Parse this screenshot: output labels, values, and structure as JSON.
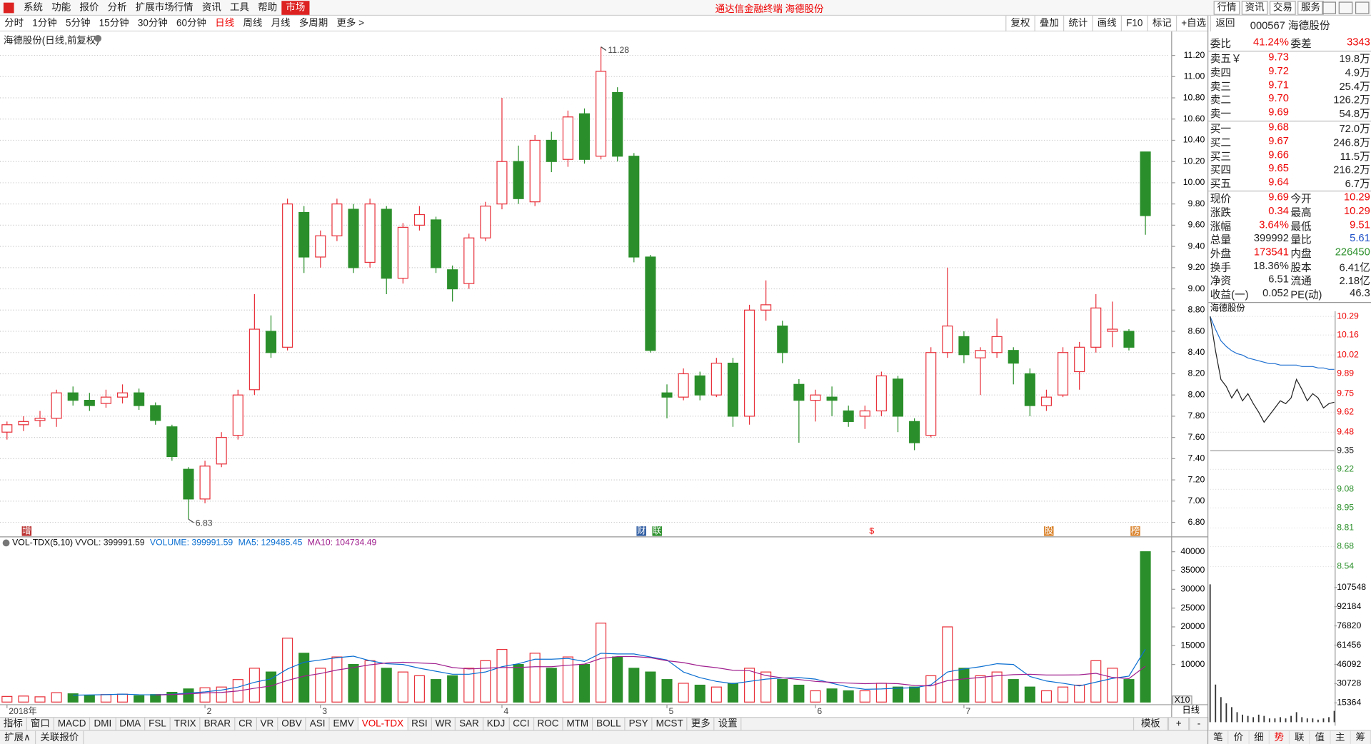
{
  "menu": {
    "items": [
      "系统",
      "功能",
      "报价",
      "分析",
      "扩展市场行情",
      "资讯",
      "工具",
      "帮助"
    ],
    "market": "市场",
    "title": "通达信金融终端  海德股份",
    "right": [
      "行情",
      "资讯",
      "交易",
      "服务"
    ]
  },
  "toolbar": {
    "periods": [
      "分时",
      "1分钟",
      "5分钟",
      "15分钟",
      "30分钟",
      "60分钟",
      "日线",
      "周线",
      "月线",
      "多周期",
      "更多 >"
    ],
    "active": "日线",
    "tools": [
      "复权",
      "叠加",
      "统计",
      "画线",
      "F10",
      "标记",
      "+自选",
      "返回"
    ]
  },
  "chart_data": {
    "type": "candlestick",
    "title": "海德股份(日线,前复权)",
    "categories": [
      "2018年",
      null,
      null,
      null,
      null,
      null,
      null,
      null,
      null,
      null,
      null,
      null,
      "2",
      null,
      null,
      null,
      null,
      null,
      null,
      "3",
      null,
      null,
      null,
      null,
      null,
      null,
      null,
      null,
      null,
      null,
      "4",
      null,
      null,
      null,
      null,
      null,
      null,
      null,
      null,
      null,
      "5",
      null,
      null,
      null,
      null,
      null,
      null,
      null,
      null,
      "6",
      null,
      null,
      null,
      null,
      null,
      null,
      null,
      null,
      "7",
      null,
      null,
      null,
      null,
      null,
      null,
      null,
      null,
      null,
      null,
      null
    ],
    "ohlc": [
      [
        7.65,
        7.75,
        7.58,
        7.72
      ],
      [
        7.72,
        7.8,
        7.66,
        7.75
      ],
      [
        7.76,
        7.85,
        7.7,
        7.78
      ],
      [
        7.78,
        8.05,
        7.7,
        8.02
      ],
      [
        8.02,
        8.08,
        7.9,
        7.95
      ],
      [
        7.95,
        8.02,
        7.85,
        7.9
      ],
      [
        7.92,
        8.05,
        7.88,
        7.98
      ],
      [
        7.98,
        8.1,
        7.92,
        8.02
      ],
      [
        8.02,
        8.06,
        7.86,
        7.9
      ],
      [
        7.9,
        7.93,
        7.72,
        7.76
      ],
      [
        7.7,
        7.72,
        7.38,
        7.42
      ],
      [
        7.3,
        7.32,
        6.83,
        7.02
      ],
      [
        7.02,
        7.38,
        6.98,
        7.33
      ],
      [
        7.35,
        7.65,
        7.32,
        7.6
      ],
      [
        7.62,
        8.05,
        7.58,
        8.0
      ],
      [
        8.05,
        8.95,
        8.0,
        8.62
      ],
      [
        8.6,
        8.75,
        8.35,
        8.4
      ],
      [
        8.45,
        9.85,
        8.42,
        9.8
      ],
      [
        9.72,
        9.78,
        9.15,
        9.3
      ],
      [
        9.3,
        9.55,
        9.2,
        9.5
      ],
      [
        9.5,
        9.85,
        9.45,
        9.8
      ],
      [
        9.75,
        9.8,
        9.15,
        9.2
      ],
      [
        9.25,
        9.85,
        9.2,
        9.8
      ],
      [
        9.75,
        9.78,
        8.95,
        9.1
      ],
      [
        9.1,
        9.62,
        9.05,
        9.58
      ],
      [
        9.6,
        9.78,
        9.55,
        9.7
      ],
      [
        9.65,
        9.68,
        9.15,
        9.2
      ],
      [
        9.18,
        9.22,
        8.88,
        9.0
      ],
      [
        9.05,
        9.52,
        9.0,
        9.48
      ],
      [
        9.48,
        9.82,
        9.45,
        9.78
      ],
      [
        9.8,
        10.8,
        9.75,
        10.2
      ],
      [
        10.2,
        10.35,
        9.8,
        9.85
      ],
      [
        9.82,
        10.45,
        9.78,
        10.4
      ],
      [
        10.4,
        10.48,
        10.1,
        10.2
      ],
      [
        10.22,
        10.68,
        10.15,
        10.62
      ],
      [
        10.65,
        10.7,
        10.18,
        10.22
      ],
      [
        10.25,
        11.28,
        10.22,
        11.05
      ],
      [
        10.85,
        10.9,
        10.2,
        10.25
      ],
      [
        10.25,
        10.28,
        9.25,
        9.3
      ],
      [
        9.3,
        9.32,
        8.4,
        8.42
      ],
      [
        8.02,
        8.1,
        7.78,
        7.98
      ],
      [
        7.98,
        8.25,
        7.95,
        8.2
      ],
      [
        8.18,
        8.22,
        7.95,
        8.0
      ],
      [
        8.0,
        8.35,
        7.98,
        8.3
      ],
      [
        8.3,
        8.35,
        7.7,
        7.8
      ],
      [
        7.8,
        8.85,
        7.72,
        8.8
      ],
      [
        8.8,
        9.08,
        8.7,
        8.85
      ],
      [
        8.65,
        8.7,
        8.3,
        8.4
      ],
      [
        8.1,
        8.15,
        7.55,
        7.95
      ],
      [
        7.95,
        8.05,
        7.75,
        8.0
      ],
      [
        7.98,
        8.08,
        7.8,
        7.95
      ],
      [
        7.85,
        7.9,
        7.7,
        7.75
      ],
      [
        7.8,
        7.9,
        7.68,
        7.85
      ],
      [
        7.85,
        8.22,
        7.8,
        8.18
      ],
      [
        8.15,
        8.18,
        7.65,
        7.8
      ],
      [
        7.75,
        7.78,
        7.48,
        7.55
      ],
      [
        7.62,
        8.45,
        7.6,
        8.4
      ],
      [
        8.4,
        9.2,
        8.35,
        8.65
      ],
      [
        8.55,
        8.6,
        8.3,
        8.38
      ],
      [
        8.35,
        8.45,
        8.0,
        8.42
      ],
      [
        8.4,
        8.72,
        8.35,
        8.55
      ],
      [
        8.42,
        8.45,
        8.1,
        8.3
      ],
      [
        8.2,
        8.25,
        7.8,
        7.9
      ],
      [
        7.9,
        8.05,
        7.85,
        7.98
      ],
      [
        8.0,
        8.45,
        7.98,
        8.4
      ],
      [
        8.22,
        8.5,
        8.05,
        8.45
      ],
      [
        8.45,
        8.95,
        8.4,
        8.82
      ],
      [
        8.6,
        8.88,
        8.45,
        8.62
      ],
      [
        8.6,
        8.62,
        8.42,
        8.45
      ],
      [
        10.29,
        10.29,
        9.51,
        9.69
      ]
    ],
    "ylim": [
      6.68,
      11.31
    ],
    "yticks": [
      {
        "value": 11.2,
        "label": "11.20"
      },
      {
        "value": 11,
        "label": "11.00"
      },
      {
        "value": 10.8,
        "label": "10.80"
      },
      {
        "value": 10.6,
        "label": "10.60"
      },
      {
        "value": 10.4,
        "label": "10.40"
      },
      {
        "value": 10.2,
        "label": "10.20"
      },
      {
        "value": 10,
        "label": "10.00"
      },
      {
        "value": 9.8,
        "label": "9.80"
      },
      {
        "value": 9.6,
        "label": "9.60"
      },
      {
        "value": 9.4,
        "label": "9.40"
      },
      {
        "value": 9.2,
        "label": "9.20"
      },
      {
        "value": 9,
        "label": "9.00"
      },
      {
        "value": 8.8,
        "label": "8.80"
      },
      {
        "value": 8.6,
        "label": "8.60"
      },
      {
        "value": 8.4,
        "label": "8.40"
      },
      {
        "value": 8.2,
        "label": "8.20"
      },
      {
        "value": 8,
        "label": "8.00"
      },
      {
        "value": 7.8,
        "label": "7.80"
      },
      {
        "value": 7.6,
        "label": "7.60"
      },
      {
        "value": 7.4,
        "label": "7.40"
      },
      {
        "value": 7.2,
        "label": "7.20"
      },
      {
        "value": 7,
        "label": "7.00"
      },
      {
        "value": 6.8,
        "label": "6.80"
      }
    ],
    "grid": true,
    "up_color": "#e8323c",
    "down_color": "#2a8f2a",
    "events": [
      "增",
      "财",
      "联",
      "$",
      "股",
      "榜"
    ],
    "volume": {
      "title": "VOL-TDX(5,10)",
      "legend": [
        {
          "text": "VVOL: 399991.59",
          "color": "#222"
        },
        {
          "text": "VOLUME: 399991.59",
          "color": "#0a6ed1"
        },
        {
          "text": "MA5: 129485.45",
          "color": "#0a6ed1"
        },
        {
          "text": "MA10: 104734.49",
          "color": "#a0208f"
        }
      ],
      "values": [
        1500,
        1600,
        1400,
        2500,
        2200,
        1800,
        2000,
        2100,
        1700,
        2000,
        2600,
        3500,
        3800,
        4000,
        6000,
        9000,
        8000,
        17000,
        13000,
        9000,
        12000,
        10000,
        11000,
        9000,
        8000,
        7000,
        6000,
        7000,
        9000,
        11000,
        14000,
        10000,
        13000,
        9000,
        12000,
        10000,
        21000,
        12000,
        9000,
        8000,
        6000,
        5000,
        4500,
        4000,
        5000,
        9000,
        8000,
        6000,
        4500,
        3000,
        3500,
        3000,
        3000,
        5000,
        4000,
        4000,
        7000,
        20000,
        9000,
        7000,
        8000,
        6000,
        4000,
        3000,
        4000,
        4500,
        11000,
        9000,
        6000,
        39999
      ],
      "ylim": [
        0,
        42100
      ],
      "yticks": [
        40000,
        35000,
        30000,
        25000,
        20000,
        15000,
        10000
      ],
      "scale_label": "X10",
      "ma_periods": [
        5,
        10
      ],
      "ma_colors": [
        "#0a6ed1",
        "#a0208f"
      ]
    },
    "period_label": "日线"
  },
  "indicators": {
    "items": [
      "指标",
      "窗口",
      "MACD",
      "DMI",
      "DMA",
      "FSL",
      "TRIX",
      "BRAR",
      "CR",
      "VR",
      "OBV",
      "ASI",
      "EMV",
      "VOL-TDX",
      "RSI",
      "WR",
      "SAR",
      "KDJ",
      "CCI",
      "ROC",
      "MTM",
      "BOLL",
      "PSY",
      "MCST",
      "更多",
      "设置"
    ],
    "active": "VOL-TDX",
    "right": [
      "模板",
      "+",
      "-"
    ]
  },
  "footer": [
    "扩展∧",
    "关联报价"
  ],
  "quote": {
    "code": "000567",
    "name": "海德股份",
    "summary": [
      {
        "label": "委比",
        "value": "41.24%",
        "color": "#e00"
      },
      {
        "label": "委差",
        "value": "3343",
        "color": "#e00"
      }
    ],
    "asks": [
      {
        "label": "卖五￥",
        "price": "9.73",
        "vol": "19.8万"
      },
      {
        "label": "卖四",
        "price": "9.72",
        "vol": "4.9万"
      },
      {
        "label": "卖三",
        "price": "9.71",
        "vol": "25.4万"
      },
      {
        "label": "卖二",
        "price": "9.70",
        "vol": "126.2万"
      },
      {
        "label": "卖一",
        "price": "9.69",
        "vol": "54.8万"
      }
    ],
    "bids": [
      {
        "label": "买一",
        "price": "9.68",
        "vol": "72.0万"
      },
      {
        "label": "买二",
        "price": "9.67",
        "vol": "246.8万"
      },
      {
        "label": "买三",
        "price": "9.66",
        "vol": "11.5万"
      },
      {
        "label": "买四",
        "price": "9.65",
        "vol": "216.2万"
      },
      {
        "label": "买五",
        "price": "9.64",
        "vol": "6.7万"
      }
    ],
    "price_color": "#e00",
    "stats": [
      [
        {
          "label": "现价",
          "value": "9.69",
          "color": "#e00"
        },
        {
          "label": "今开",
          "value": "10.29",
          "color": "#e00"
        }
      ],
      [
        {
          "label": "涨跌",
          "value": "0.34",
          "color": "#e00"
        },
        {
          "label": "最高",
          "value": "10.29",
          "color": "#e00"
        }
      ],
      [
        {
          "label": "涨幅",
          "value": "3.64%",
          "color": "#e00"
        },
        {
          "label": "最低",
          "value": "9.51",
          "color": "#e00"
        }
      ],
      [
        {
          "label": "总量",
          "value": "399992",
          "color": "#222"
        },
        {
          "label": "量比",
          "value": "5.61",
          "color": "#1e50c8"
        }
      ],
      [
        {
          "label": "外盘",
          "value": "173541",
          "color": "#e00"
        },
        {
          "label": "内盘",
          "value": "226450",
          "color": "#2a8f2a"
        }
      ],
      [
        {
          "label": "换手",
          "value": "18.36%",
          "color": "#222"
        },
        {
          "label": "股本",
          "value": "6.41亿",
          "color": "#222"
        }
      ],
      [
        {
          "label": "净资",
          "value": "6.51",
          "color": "#222"
        },
        {
          "label": "流通",
          "value": "2.18亿",
          "color": "#222"
        }
      ],
      [
        {
          "label": "收益(一)",
          "value": "0.052",
          "color": "#222"
        },
        {
          "label": "PE(动)",
          "value": "46.3",
          "color": "#222"
        }
      ]
    ]
  },
  "intraday": {
    "type": "line",
    "title": "海德股份",
    "price": [
      10.29,
      10.05,
      9.85,
      9.8,
      9.72,
      9.78,
      9.7,
      9.75,
      9.68,
      9.62,
      9.55,
      9.6,
      9.65,
      9.7,
      9.68,
      9.72,
      9.85,
      9.78,
      9.7,
      9.75,
      9.72,
      9.65,
      9.68,
      9.69
    ],
    "avg": [
      10.29,
      10.2,
      10.12,
      10.08,
      10.05,
      10.03,
      10.02,
      10.0,
      9.99,
      9.98,
      9.97,
      9.96,
      9.96,
      9.95,
      9.95,
      9.95,
      9.95,
      9.94,
      9.94,
      9.94,
      9.93,
      9.93,
      9.92,
      9.92
    ],
    "volume": [
      110000,
      30000,
      20000,
      15000,
      12000,
      8000,
      6000,
      5000,
      4000,
      6000,
      5000,
      3000,
      3000,
      4000,
      3000,
      5000,
      8000,
      4000,
      3000,
      3000,
      2000,
      3000,
      4000,
      9000
    ],
    "ylim": [
      8.54,
      10.29
    ],
    "yticks": [
      10.29,
      10.16,
      10.02,
      9.89,
      9.75,
      9.62,
      9.48,
      9.35,
      9.22,
      9.08,
      8.95,
      8.81,
      8.68,
      8.54
    ],
    "base": 9.35,
    "vlim": [
      0,
      113000
    ],
    "vticks": [
      107548,
      92184,
      76820,
      61456,
      46092,
      30728,
      15364
    ],
    "price_color": "#222",
    "avg_color": "#1e6fd0",
    "up_color": "#e00",
    "down_color": "#2a8f2a"
  },
  "side_tabs": {
    "items": [
      "笔",
      "价",
      "细",
      "势",
      "联",
      "值",
      "主",
      "筹"
    ],
    "active": "势"
  }
}
